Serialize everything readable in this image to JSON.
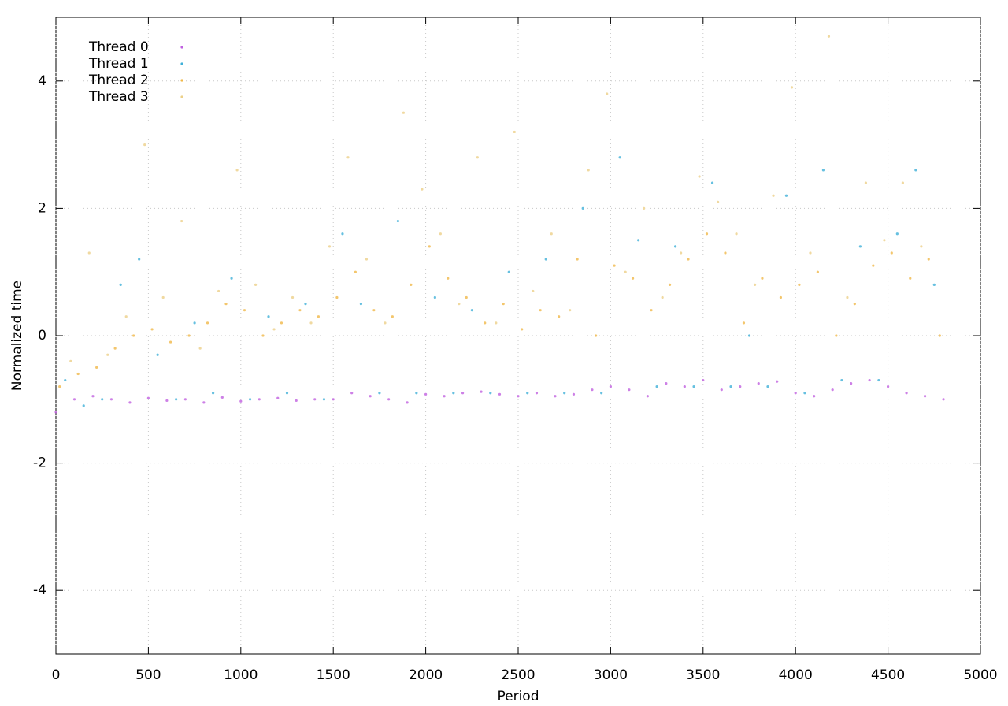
{
  "chart_data": {
    "type": "scatter",
    "x_label": "Period",
    "y_label": "Normalized time",
    "xlim": [
      0,
      5000
    ],
    "ylim": [
      -5,
      5
    ],
    "xticks": [
      0,
      500,
      1000,
      1500,
      2000,
      2500,
      3000,
      3500,
      4000,
      4500,
      5000
    ],
    "yticks": [
      -4,
      -2,
      0,
      2,
      4
    ],
    "grid": true,
    "legend": "upper-left",
    "series": [
      {
        "name": "Thread 0",
        "color": "#c060e0",
        "x": [
          0,
          100,
          200,
          300,
          400,
          500,
          600,
          700,
          800,
          900,
          1000,
          1100,
          1200,
          1300,
          1400,
          1500,
          1600,
          1700,
          1800,
          1900,
          2000,
          2100,
          2200,
          2300,
          2400,
          2500,
          2600,
          2700,
          2800,
          2900,
          3000,
          3100,
          3200,
          3300,
          3400,
          3500,
          3600,
          3700,
          3800,
          3900,
          4000,
          4100,
          4200,
          4300,
          4400,
          4500,
          4600,
          4700,
          4800
        ],
        "values": [
          -1.2,
          -1.0,
          -0.95,
          -1.0,
          -1.05,
          -0.98,
          -1.02,
          -1.0,
          -1.05,
          -0.97,
          -1.03,
          -1.0,
          -0.98,
          -1.02,
          -1.0,
          -1.0,
          -0.9,
          -0.95,
          -1.0,
          -1.05,
          -0.92,
          -0.95,
          -0.9,
          -0.88,
          -0.92,
          -0.95,
          -0.9,
          -0.95,
          -0.92,
          -0.85,
          -0.8,
          -0.85,
          -0.95,
          -0.75,
          -0.8,
          -0.7,
          -0.85,
          -0.8,
          -0.75,
          -0.72,
          -0.9,
          -0.95,
          -0.85,
          -0.75,
          -0.7,
          -0.8,
          -0.9,
          -0.95,
          -1.0
        ]
      },
      {
        "name": "Thread 1",
        "color": "#40b0d8",
        "x": [
          50,
          150,
          250,
          350,
          450,
          550,
          650,
          750,
          850,
          950,
          1050,
          1150,
          1250,
          1350,
          1450,
          1550,
          1650,
          1750,
          1850,
          1950,
          2050,
          2150,
          2250,
          2350,
          2450,
          2550,
          2650,
          2750,
          2850,
          2950,
          3050,
          3150,
          3250,
          3350,
          3450,
          3550,
          3650,
          3750,
          3850,
          3950,
          4050,
          4150,
          4250,
          4350,
          4450,
          4550,
          4650,
          4750
        ],
        "values": [
          -0.7,
          -1.1,
          -1.0,
          0.8,
          1.2,
          -0.3,
          -1.0,
          0.2,
          -0.9,
          0.9,
          -1.0,
          0.3,
          -0.9,
          0.5,
          -1.0,
          1.6,
          0.5,
          -0.9,
          1.8,
          -0.9,
          0.6,
          -0.9,
          0.4,
          -0.9,
          1.0,
          -0.9,
          1.2,
          -0.9,
          2.0,
          -0.9,
          2.8,
          1.5,
          -0.8,
          1.4,
          -0.8,
          2.4,
          -0.8,
          0.0,
          -0.8,
          2.2,
          -0.9,
          2.6,
          -0.7,
          1.4,
          -0.7,
          1.6,
          2.6,
          0.8
        ]
      },
      {
        "name": "Thread 2",
        "color": "#f0b848",
        "x": [
          20,
          120,
          220,
          320,
          420,
          520,
          620,
          720,
          820,
          920,
          1020,
          1120,
          1220,
          1320,
          1420,
          1520,
          1620,
          1720,
          1820,
          1920,
          2020,
          2120,
          2220,
          2320,
          2420,
          2520,
          2620,
          2720,
          2820,
          2920,
          3020,
          3120,
          3220,
          3320,
          3420,
          3520,
          3620,
          3720,
          3820,
          3920,
          4020,
          4120,
          4220,
          4320,
          4420,
          4520,
          4620,
          4720,
          4780
        ],
        "values": [
          -0.8,
          -0.6,
          -0.5,
          -0.2,
          0.0,
          0.1,
          -0.1,
          0.0,
          0.2,
          0.5,
          0.4,
          0.0,
          0.2,
          0.4,
          0.3,
          0.6,
          1.0,
          0.4,
          0.3,
          0.8,
          1.4,
          0.9,
          0.6,
          0.2,
          0.5,
          0.1,
          0.4,
          0.3,
          1.2,
          0.0,
          1.1,
          0.9,
          0.4,
          0.8,
          1.2,
          1.6,
          1.3,
          0.2,
          0.9,
          0.6,
          0.8,
          1.0,
          0.0,
          0.5,
          1.1,
          1.3,
          0.9,
          1.2,
          0.0
        ]
      },
      {
        "name": "Thread 3",
        "color": "#ecd088",
        "x": [
          80,
          180,
          280,
          380,
          480,
          580,
          680,
          780,
          880,
          980,
          1080,
          1180,
          1280,
          1380,
          1480,
          1580,
          1680,
          1780,
          1880,
          1980,
          2080,
          2180,
          2280,
          2380,
          2480,
          2580,
          2680,
          2780,
          2880,
          2980,
          3080,
          3180,
          3280,
          3380,
          3480,
          3580,
          3680,
          3780,
          3880,
          3980,
          4080,
          4180,
          4280,
          4380,
          4480,
          4580,
          4680
        ],
        "values": [
          -0.4,
          1.3,
          -0.3,
          0.3,
          3.0,
          0.6,
          1.8,
          -0.2,
          0.7,
          2.6,
          0.8,
          0.1,
          0.6,
          0.2,
          1.4,
          2.8,
          1.2,
          0.2,
          3.5,
          2.3,
          1.6,
          0.5,
          2.8,
          0.2,
          3.2,
          0.7,
          1.6,
          0.4,
          2.6,
          3.8,
          1.0,
          2.0,
          0.6,
          1.3,
          2.5,
          2.1,
          1.6,
          0.8,
          2.2,
          3.9,
          1.3,
          4.7,
          0.6,
          2.4,
          1.5,
          2.4,
          1.4
        ]
      }
    ]
  }
}
